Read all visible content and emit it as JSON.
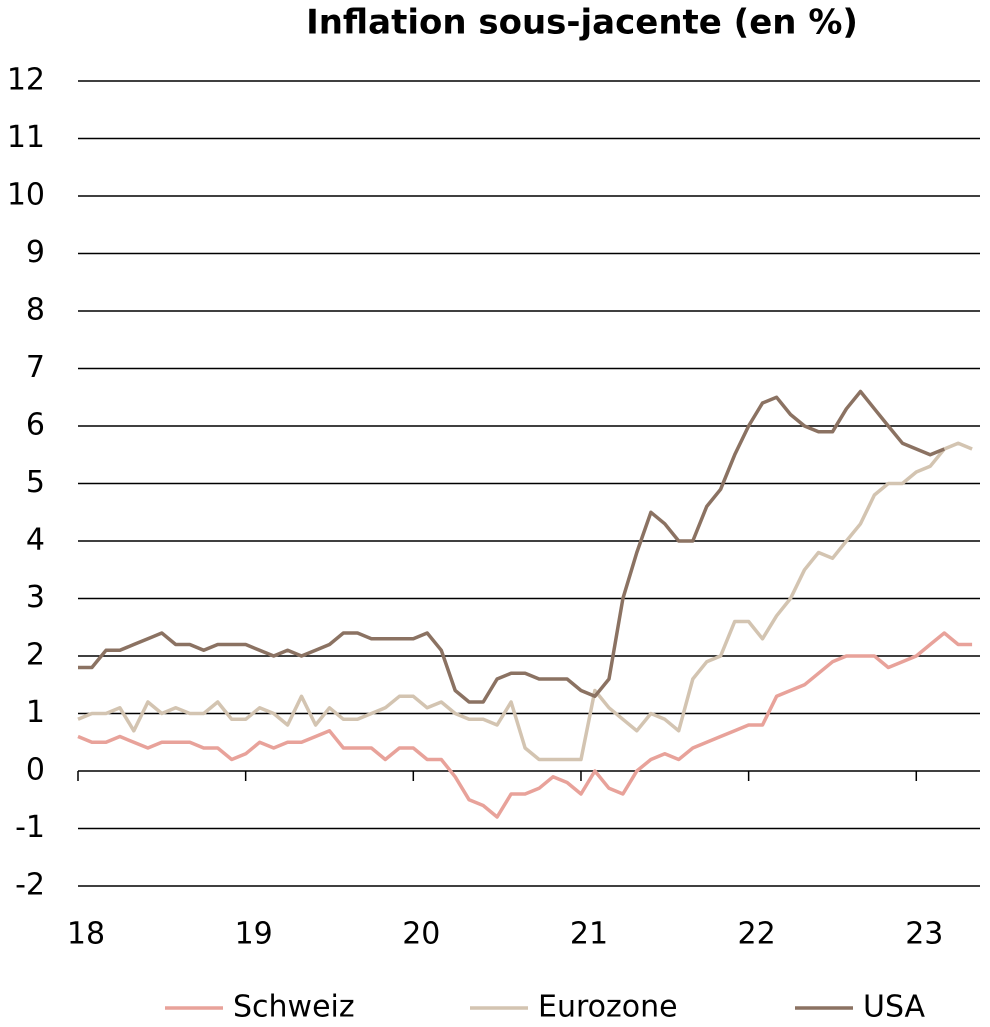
{
  "chart_data": {
    "type": "line",
    "title": "Inflation sous-jacente (en %)",
    "x": [
      2018.0,
      2018.083,
      2018.167,
      2018.25,
      2018.333,
      2018.417,
      2018.5,
      2018.583,
      2018.667,
      2018.75,
      2018.833,
      2018.917,
      2019.0,
      2019.083,
      2019.167,
      2019.25,
      2019.333,
      2019.417,
      2019.5,
      2019.583,
      2019.667,
      2019.75,
      2019.833,
      2019.917,
      2020.0,
      2020.083,
      2020.167,
      2020.25,
      2020.333,
      2020.417,
      2020.5,
      2020.583,
      2020.667,
      2020.75,
      2020.833,
      2020.917,
      2021.0,
      2021.083,
      2021.167,
      2021.25,
      2021.333,
      2021.417,
      2021.5,
      2021.583,
      2021.667,
      2021.75,
      2021.833,
      2021.917,
      2022.0,
      2022.083,
      2022.167,
      2022.25,
      2022.333,
      2022.417,
      2022.5,
      2022.583,
      2022.667,
      2022.75,
      2022.833,
      2022.917,
      2023.0,
      2023.083,
      2023.167,
      2023.25,
      2023.333
    ],
    "series": [
      {
        "name": "Schweiz",
        "color": "#e8a29a",
        "values": [
          0.6,
          0.5,
          0.5,
          0.6,
          0.5,
          0.4,
          0.5,
          0.5,
          0.5,
          0.4,
          0.4,
          0.2,
          0.3,
          0.5,
          0.4,
          0.5,
          0.5,
          0.6,
          0.7,
          0.4,
          0.4,
          0.4,
          0.2,
          0.4,
          0.4,
          0.2,
          0.2,
          -0.1,
          -0.5,
          -0.6,
          -0.8,
          -0.4,
          -0.4,
          -0.3,
          -0.1,
          -0.2,
          -0.4,
          0.0,
          -0.3,
          -0.4,
          0.0,
          0.2,
          0.3,
          0.2,
          0.4,
          0.5,
          0.6,
          0.7,
          0.8,
          0.8,
          1.3,
          1.4,
          1.5,
          1.7,
          1.9,
          2.0,
          2.0,
          2.0,
          1.8,
          1.9,
          2.0,
          2.2,
          2.4,
          2.2,
          2.2
        ]
      },
      {
        "name": "Eurozone",
        "color": "#d3c4b1",
        "values": [
          0.9,
          1.0,
          1.0,
          1.1,
          0.7,
          1.2,
          1.0,
          1.1,
          1.0,
          1.0,
          1.2,
          0.9,
          0.9,
          1.1,
          1.0,
          0.8,
          1.3,
          0.8,
          1.1,
          0.9,
          0.9,
          1.0,
          1.1,
          1.3,
          1.3,
          1.1,
          1.2,
          1.0,
          0.9,
          0.9,
          0.8,
          1.2,
          0.4,
          0.2,
          0.2,
          0.2,
          0.2,
          1.4,
          1.1,
          0.9,
          0.7,
          1.0,
          0.9,
          0.7,
          1.6,
          1.9,
          2.0,
          2.6,
          2.6,
          2.3,
          2.7,
          3.0,
          3.5,
          3.8,
          3.7,
          4.0,
          4.3,
          4.8,
          5.0,
          5.0,
          5.2,
          5.3,
          5.6,
          5.7,
          5.6
        ]
      },
      {
        "name": "USA",
        "color": "#8b7262",
        "values": [
          1.8,
          1.8,
          2.1,
          2.1,
          2.2,
          2.3,
          2.4,
          2.2,
          2.2,
          2.1,
          2.2,
          2.2,
          2.2,
          2.1,
          2.0,
          2.1,
          2.0,
          2.1,
          2.2,
          2.4,
          2.4,
          2.3,
          2.3,
          2.3,
          2.3,
          2.4,
          2.1,
          1.4,
          1.2,
          1.2,
          1.6,
          1.7,
          1.7,
          1.6,
          1.6,
          1.6,
          1.4,
          1.3,
          1.6,
          3.0,
          3.8,
          4.5,
          4.3,
          4.0,
          4.0,
          4.6,
          4.9,
          5.5,
          6.0,
          6.4,
          6.5,
          6.2,
          6.0,
          5.9,
          5.9,
          6.3,
          6.6,
          6.3,
          6.0,
          5.7,
          5.6,
          5.5,
          5.6,
          null,
          null
        ]
      }
    ],
    "xlim": [
      2018,
      2023.38
    ],
    "xticks": [
      {
        "value": 2018,
        "label": "18"
      },
      {
        "value": 2019,
        "label": "19"
      },
      {
        "value": 2020,
        "label": "20"
      },
      {
        "value": 2021,
        "label": "21"
      },
      {
        "value": 2022,
        "label": "22"
      },
      {
        "value": 2023,
        "label": "23"
      }
    ],
    "ylim": [
      -2,
      12
    ],
    "yticks": [
      -2,
      -1,
      0,
      1,
      2,
      3,
      4,
      5,
      6,
      7,
      8,
      9,
      10,
      11,
      12
    ],
    "grid": true
  }
}
